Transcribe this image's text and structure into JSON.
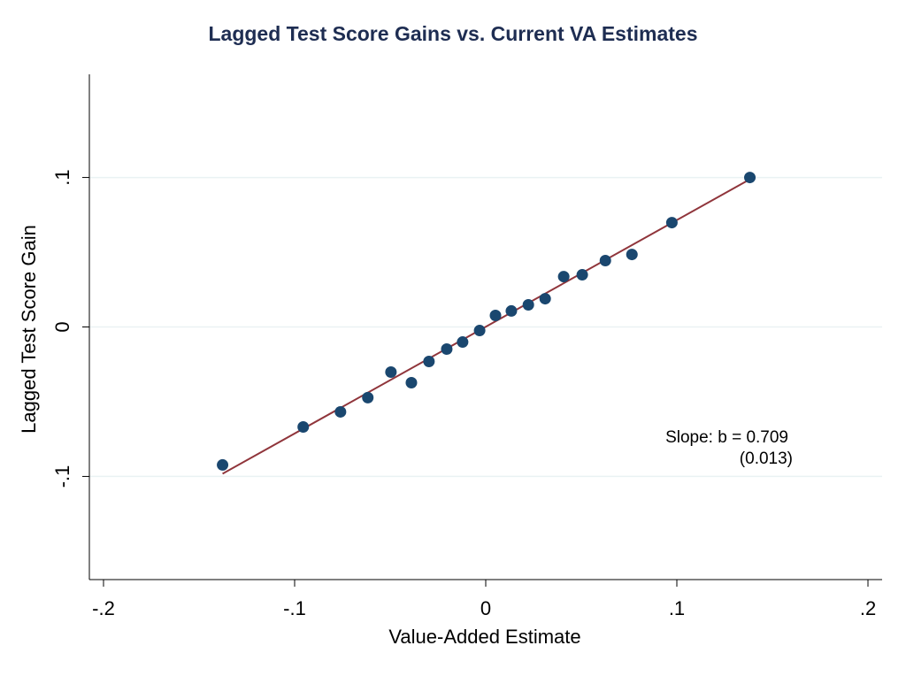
{
  "chart_data": {
    "type": "scatter",
    "title": "Lagged Test Score Gains vs. Current VA Estimates",
    "x_label": "Value-Added Estimate",
    "y_label": "Lagged Test Score Gain",
    "annotations": [
      "Slope: b = 0.709",
      "(0.013)"
    ],
    "xlim": [
      -0.2074,
      0.2074
    ],
    "ylim": [
      -0.169,
      0.169
    ],
    "xticks": [
      {
        "value": -0.2,
        "label": "-.2"
      },
      {
        "value": -0.1,
        "label": "-.1"
      },
      0,
      {
        "value": 0.1,
        "label": ".1"
      },
      {
        "value": 0.2,
        "label": ".2"
      }
    ],
    "yticks": [
      {
        "value": -0.1,
        "label": "-.1"
      },
      0,
      {
        "value": 0.1,
        "label": ".1"
      }
    ],
    "grid": true,
    "series": [
      {
        "color": "#1a476f",
        "x": [
          -0.1377,
          -0.0955,
          -0.076,
          -0.0617,
          -0.0496,
          -0.0389,
          -0.0297,
          -0.0204,
          -0.0121,
          -0.0032,
          0.0051,
          0.0134,
          0.0223,
          0.0311,
          0.0408,
          0.0505,
          0.0626,
          0.0765,
          0.0974,
          0.1382
        ],
        "values": [
          -0.0923,
          -0.0669,
          -0.0568,
          -0.0473,
          -0.0302,
          -0.0373,
          -0.0231,
          -0.0148,
          -0.0101,
          -0.0024,
          0.0077,
          0.0107,
          0.0148,
          0.0189,
          0.0337,
          0.0349,
          0.0444,
          0.0485,
          0.0698,
          0.1
        ]
      }
    ],
    "fit": {
      "color": "#90353b",
      "x": [
        -0.1377,
        0.1382
      ],
      "values": [
        -0.0982,
        0.0988
      ]
    }
  }
}
